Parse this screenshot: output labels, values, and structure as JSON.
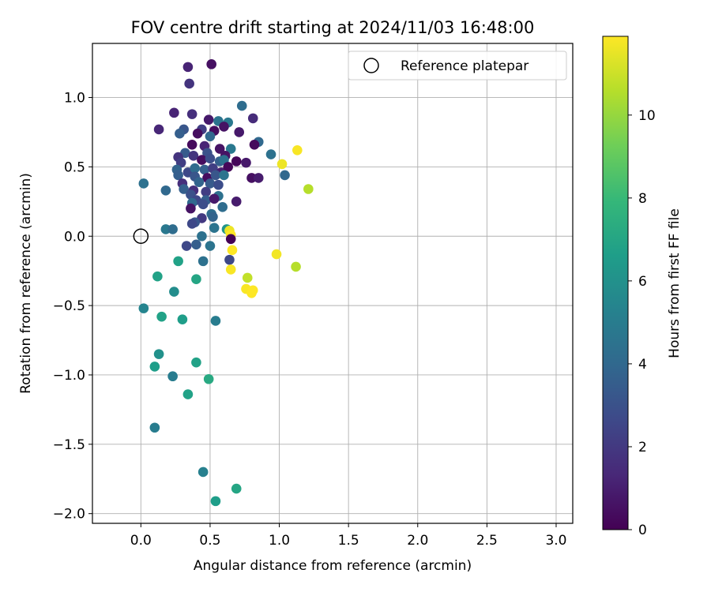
{
  "chart_data": {
    "type": "scatter",
    "title": "FOV centre drift starting at 2024/11/03 16:48:00",
    "xlabel": "Angular distance from reference (arcmin)",
    "ylabel": "Rotation from reference (arcmin)",
    "colorbar_label": "Hours from first FF file",
    "xlim": [
      -0.35,
      3.12
    ],
    "ylim": [
      -2.07,
      1.39
    ],
    "clim": [
      0,
      11.9
    ],
    "xticks": [
      0.0,
      0.5,
      1.0,
      1.5,
      2.0,
      2.5,
      3.0
    ],
    "xtick_labels": [
      "0.0",
      "0.5",
      "1.0",
      "1.5",
      "2.0",
      "2.5",
      "3.0"
    ],
    "yticks": [
      1.0,
      0.5,
      0.0,
      -0.5,
      -1.0,
      -1.5,
      -2.0
    ],
    "ytick_labels": [
      "1.0",
      "0.5",
      "0.0",
      "−0.5",
      "−1.0",
      "−1.5",
      "−2.0"
    ],
    "cticks": [
      0,
      2,
      4,
      6,
      8,
      10
    ],
    "ctick_labels": [
      "0",
      "2",
      "4",
      "6",
      "8",
      "10"
    ],
    "grid": true,
    "legend": {
      "position": "top-right",
      "entries": [
        {
          "label": "Reference platepar",
          "marker": "open-circle"
        }
      ]
    },
    "reference_point": {
      "x": 0.0,
      "y": 0.0
    },
    "colormap": [
      "#440154",
      "#482878",
      "#3e4989",
      "#31688e",
      "#26828e",
      "#1f9e89",
      "#35b779",
      "#6ece58",
      "#b5de2b",
      "#fde725"
    ],
    "points": [
      {
        "x": 0.34,
        "y": 1.22,
        "h": 1.2
      },
      {
        "x": 0.51,
        "y": 1.24,
        "h": 0.5
      },
      {
        "x": 0.35,
        "y": 1.1,
        "h": 1.8
      },
      {
        "x": 0.73,
        "y": 0.94,
        "h": 4.2
      },
      {
        "x": 0.81,
        "y": 0.85,
        "h": 1.5
      },
      {
        "x": 0.24,
        "y": 0.89,
        "h": 1.2
      },
      {
        "x": 0.37,
        "y": 0.88,
        "h": 1.6
      },
      {
        "x": 0.49,
        "y": 0.84,
        "h": 0.8
      },
      {
        "x": 0.56,
        "y": 0.83,
        "h": 4.6
      },
      {
        "x": 0.63,
        "y": 0.82,
        "h": 4.8
      },
      {
        "x": 0.13,
        "y": 0.77,
        "h": 1.3
      },
      {
        "x": 0.31,
        "y": 0.77,
        "h": 3.2
      },
      {
        "x": 0.44,
        "y": 0.77,
        "h": 2.2
      },
      {
        "x": 0.53,
        "y": 0.76,
        "h": 0.4
      },
      {
        "x": 0.6,
        "y": 0.79,
        "h": 0.6
      },
      {
        "x": 0.71,
        "y": 0.75,
        "h": 0.8
      },
      {
        "x": 0.28,
        "y": 0.74,
        "h": 3.6
      },
      {
        "x": 0.41,
        "y": 0.74,
        "h": 0.4
      },
      {
        "x": 0.5,
        "y": 0.72,
        "h": 4.0
      },
      {
        "x": 0.85,
        "y": 0.68,
        "h": 4.0
      },
      {
        "x": 0.82,
        "y": 0.66,
        "h": 0.3
      },
      {
        "x": 0.37,
        "y": 0.66,
        "h": 0.3
      },
      {
        "x": 0.46,
        "y": 0.65,
        "h": 1.2
      },
      {
        "x": 0.57,
        "y": 0.63,
        "h": 0.6
      },
      {
        "x": 0.65,
        "y": 0.63,
        "h": 4.8
      },
      {
        "x": 0.32,
        "y": 0.6,
        "h": 3.4
      },
      {
        "x": 0.38,
        "y": 0.58,
        "h": 1.8
      },
      {
        "x": 0.48,
        "y": 0.6,
        "h": 3.0
      },
      {
        "x": 0.61,
        "y": 0.58,
        "h": 0.6
      },
      {
        "x": 0.94,
        "y": 0.59,
        "h": 4.4
      },
      {
        "x": 1.13,
        "y": 0.62,
        "h": 11.8
      },
      {
        "x": 0.27,
        "y": 0.57,
        "h": 1.8
      },
      {
        "x": 0.29,
        "y": 0.53,
        "h": 2.2
      },
      {
        "x": 0.44,
        "y": 0.55,
        "h": 0.4
      },
      {
        "x": 0.5,
        "y": 0.56,
        "h": 2.8
      },
      {
        "x": 0.57,
        "y": 0.54,
        "h": 3.6
      },
      {
        "x": 0.6,
        "y": 0.55,
        "h": 4.4
      },
      {
        "x": 0.69,
        "y": 0.54,
        "h": 0.2
      },
      {
        "x": 0.76,
        "y": 0.53,
        "h": 0.8
      },
      {
        "x": 1.02,
        "y": 0.52,
        "h": 11.6
      },
      {
        "x": 0.26,
        "y": 0.48,
        "h": 3.8
      },
      {
        "x": 0.34,
        "y": 0.46,
        "h": 2.6
      },
      {
        "x": 0.39,
        "y": 0.49,
        "h": 4.2
      },
      {
        "x": 0.46,
        "y": 0.48,
        "h": 3.6
      },
      {
        "x": 0.52,
        "y": 0.49,
        "h": 2.2
      },
      {
        "x": 0.58,
        "y": 0.46,
        "h": 1.0
      },
      {
        "x": 0.63,
        "y": 0.5,
        "h": 0.2
      },
      {
        "x": 0.27,
        "y": 0.44,
        "h": 3.6
      },
      {
        "x": 0.39,
        "y": 0.43,
        "h": 3.2
      },
      {
        "x": 0.48,
        "y": 0.42,
        "h": 0.4
      },
      {
        "x": 0.54,
        "y": 0.44,
        "h": 3.2
      },
      {
        "x": 0.6,
        "y": 0.44,
        "h": 4.6
      },
      {
        "x": 0.8,
        "y": 0.42,
        "h": 0.5
      },
      {
        "x": 0.85,
        "y": 0.42,
        "h": 0.9
      },
      {
        "x": 1.04,
        "y": 0.44,
        "h": 4.0
      },
      {
        "x": 0.02,
        "y": 0.38,
        "h": 4.4
      },
      {
        "x": 0.3,
        "y": 0.38,
        "h": 1.6
      },
      {
        "x": 0.42,
        "y": 0.39,
        "h": 3.8
      },
      {
        "x": 0.5,
        "y": 0.38,
        "h": 3.4
      },
      {
        "x": 0.56,
        "y": 0.37,
        "h": 2.8
      },
      {
        "x": 1.21,
        "y": 0.34,
        "h": 10.6
      },
      {
        "x": 0.18,
        "y": 0.33,
        "h": 4.0
      },
      {
        "x": 0.31,
        "y": 0.34,
        "h": 3.6
      },
      {
        "x": 0.38,
        "y": 0.33,
        "h": 1.6
      },
      {
        "x": 0.47,
        "y": 0.32,
        "h": 2.2
      },
      {
        "x": 0.36,
        "y": 0.3,
        "h": 3.0
      },
      {
        "x": 0.56,
        "y": 0.29,
        "h": 4.4
      },
      {
        "x": 0.4,
        "y": 0.26,
        "h": 2.6
      },
      {
        "x": 0.47,
        "y": 0.26,
        "h": 3.6
      },
      {
        "x": 0.53,
        "y": 0.27,
        "h": 0.8
      },
      {
        "x": 0.69,
        "y": 0.25,
        "h": 0.9
      },
      {
        "x": 0.37,
        "y": 0.24,
        "h": 4.0
      },
      {
        "x": 0.45,
        "y": 0.23,
        "h": 2.8
      },
      {
        "x": 0.59,
        "y": 0.21,
        "h": 4.2
      },
      {
        "x": 0.36,
        "y": 0.2,
        "h": 0.6
      },
      {
        "x": 0.51,
        "y": 0.16,
        "h": 4.2
      },
      {
        "x": 0.52,
        "y": 0.14,
        "h": 3.8
      },
      {
        "x": 0.44,
        "y": 0.13,
        "h": 2.0
      },
      {
        "x": 0.39,
        "y": 0.1,
        "h": 3.2
      },
      {
        "x": 0.37,
        "y": 0.09,
        "h": 2.6
      },
      {
        "x": 0.53,
        "y": 0.06,
        "h": 4.6
      },
      {
        "x": 0.62,
        "y": 0.05,
        "h": 6.2
      },
      {
        "x": 0.64,
        "y": 0.04,
        "h": 11.6
      },
      {
        "x": 0.18,
        "y": 0.05,
        "h": 4.8
      },
      {
        "x": 0.23,
        "y": 0.05,
        "h": 4.2
      },
      {
        "x": 0.65,
        "y": 0.01,
        "h": 11.9
      },
      {
        "x": 0.44,
        "y": 0.0,
        "h": 4.4
      },
      {
        "x": 0.65,
        "y": -0.02,
        "h": 0.0
      },
      {
        "x": 0.33,
        "y": -0.07,
        "h": 2.6
      },
      {
        "x": 0.4,
        "y": -0.06,
        "h": 3.6
      },
      {
        "x": 0.5,
        "y": -0.07,
        "h": 4.6
      },
      {
        "x": 0.66,
        "y": -0.1,
        "h": 11.9
      },
      {
        "x": 0.27,
        "y": -0.18,
        "h": 6.8
      },
      {
        "x": 0.45,
        "y": -0.18,
        "h": 4.4
      },
      {
        "x": 0.64,
        "y": -0.17,
        "h": 2.6
      },
      {
        "x": 0.65,
        "y": -0.24,
        "h": 11.8
      },
      {
        "x": 0.12,
        "y": -0.29,
        "h": 6.8
      },
      {
        "x": 0.4,
        "y": -0.31,
        "h": 7.0
      },
      {
        "x": 0.77,
        "y": -0.3,
        "h": 10.8
      },
      {
        "x": 0.98,
        "y": -0.13,
        "h": 11.7
      },
      {
        "x": 1.12,
        "y": -0.22,
        "h": 10.6
      },
      {
        "x": 0.76,
        "y": -0.38,
        "h": 11.8
      },
      {
        "x": 0.81,
        "y": -0.39,
        "h": 11.9
      },
      {
        "x": 0.8,
        "y": -0.41,
        "h": 11.9
      },
      {
        "x": 0.24,
        "y": -0.4,
        "h": 5.8
      },
      {
        "x": 0.02,
        "y": -0.52,
        "h": 5.4
      },
      {
        "x": 0.15,
        "y": -0.58,
        "h": 6.8
      },
      {
        "x": 0.3,
        "y": -0.6,
        "h": 6.6
      },
      {
        "x": 0.54,
        "y": -0.61,
        "h": 5.0
      },
      {
        "x": 0.13,
        "y": -0.85,
        "h": 6.0
      },
      {
        "x": 0.4,
        "y": -0.91,
        "h": 6.8
      },
      {
        "x": 0.1,
        "y": -0.94,
        "h": 6.6
      },
      {
        "x": 0.23,
        "y": -1.01,
        "h": 5.0
      },
      {
        "x": 0.49,
        "y": -1.03,
        "h": 7.2
      },
      {
        "x": 0.34,
        "y": -1.14,
        "h": 6.8
      },
      {
        "x": 0.1,
        "y": -1.38,
        "h": 5.0
      },
      {
        "x": 0.45,
        "y": -1.7,
        "h": 5.2
      },
      {
        "x": 0.69,
        "y": -1.82,
        "h": 7.0
      },
      {
        "x": 0.54,
        "y": -1.91,
        "h": 6.6
      }
    ]
  }
}
